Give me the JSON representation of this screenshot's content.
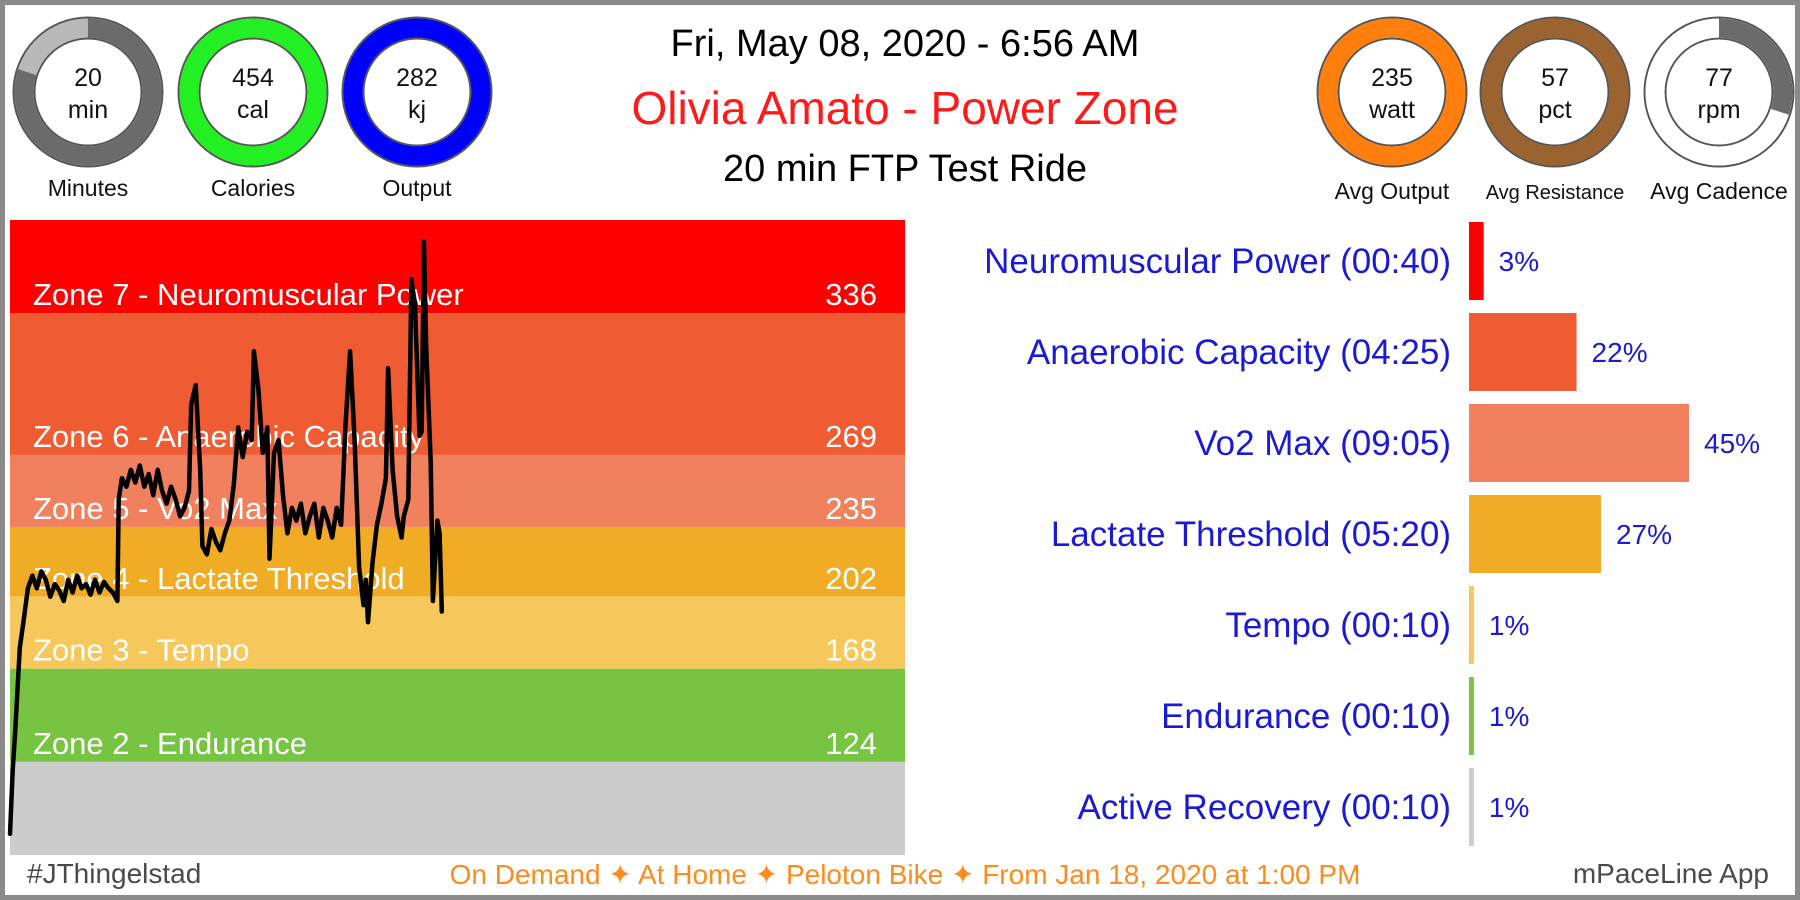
{
  "header": {
    "date": "Fri, May 08, 2020 - 6:56 AM",
    "name": "Olivia Amato - Power Zone",
    "ride": "20 min FTP Test Ride"
  },
  "metrics": [
    {
      "value": "20",
      "unit": "min",
      "label": "Minutes",
      "color": "#6b6b6b",
      "track": "#b8b8b8",
      "fraction": 0.8
    },
    {
      "value": "454",
      "unit": "cal",
      "label": "Calories",
      "color": "#22f022",
      "track": "#22f022",
      "fraction": 1.0
    },
    {
      "value": "282",
      "unit": "kj",
      "label": "Output",
      "color": "#0000ff",
      "track": "#0000ff",
      "fraction": 1.0
    },
    {
      "value": "235",
      "unit": "watt",
      "label": "Avg Output",
      "color": "#ff7f0e",
      "track": "#ff7f0e",
      "fraction": 1.0
    },
    {
      "value": "57",
      "unit": "pct",
      "label": "Avg Resistance",
      "color": "#9a6330",
      "track": "#9a6330",
      "fraction": 1.0
    },
    {
      "value": "77",
      "unit": "rpm",
      "label": "Avg Cadence",
      "color": "#6b6b6b",
      "track": "#ffffff",
      "fraction": 0.3
    }
  ],
  "chart_data": [
    {
      "type": "line",
      "title": "",
      "xlabel": "",
      "ylabel": "",
      "xlim": [
        0,
        20
      ],
      "ylim": [
        80,
        380
      ],
      "grid": false,
      "zones": [
        {
          "label": "Zone 7 - Neuromuscular Power",
          "threshold": 336,
          "color": "#ff0000"
        },
        {
          "label": "Zone 6 - Anaerobic Capacity",
          "threshold": 269,
          "color": "#ef5b32"
        },
        {
          "label": "Zone 5 - Vo2 Max",
          "threshold": 235,
          "color": "#f0805e"
        },
        {
          "label": "Zone 4 - Lactate Threshold",
          "threshold": 202,
          "color": "#f0ac24"
        },
        {
          "label": "Zone 3 - Tempo",
          "threshold": 168,
          "color": "#f6c75a"
        },
        {
          "label": "Zone 2 - Endurance",
          "threshold": 124,
          "color": "#76c442"
        },
        {
          "label": "",
          "threshold": 80,
          "color": "#cccccc"
        }
      ],
      "series": [
        {
          "color": "#000000",
          "points": [
            [
              0.0,
              90
            ],
            [
              0.06,
              120
            ],
            [
              0.12,
              140
            ],
            [
              0.22,
              178
            ],
            [
              0.3,
              190
            ],
            [
              0.4,
              206
            ],
            [
              0.5,
              212
            ],
            [
              0.6,
              206
            ],
            [
              0.7,
              214
            ],
            [
              0.8,
              210
            ],
            [
              0.9,
              202
            ],
            [
              1.0,
              208
            ],
            [
              1.1,
              205
            ],
            [
              1.2,
              200
            ],
            [
              1.3,
              210
            ],
            [
              1.4,
              204
            ],
            [
              1.5,
              212
            ],
            [
              1.6,
              206
            ],
            [
              1.7,
              208
            ],
            [
              1.8,
              203
            ],
            [
              1.9,
              210
            ],
            [
              2.0,
              204
            ],
            [
              2.1,
              209
            ],
            [
              2.2,
              206
            ],
            [
              2.3,
              204
            ],
            [
              2.4,
              200
            ],
            [
              2.43,
              248
            ],
            [
              2.5,
              258
            ],
            [
              2.6,
              254
            ],
            [
              2.7,
              262
            ],
            [
              2.8,
              256
            ],
            [
              2.9,
              264
            ],
            [
              3.0,
              254
            ],
            [
              3.1,
              260
            ],
            [
              3.2,
              250
            ],
            [
              3.3,
              262
            ],
            [
              3.4,
              252
            ],
            [
              3.5,
              246
            ],
            [
              3.6,
              254
            ],
            [
              3.7,
              248
            ],
            [
              3.8,
              240
            ],
            [
              3.9,
              244
            ],
            [
              4.0,
              252
            ],
            [
              4.05,
              293
            ],
            [
              4.15,
              302
            ],
            [
              4.25,
              262
            ],
            [
              4.3,
              226
            ],
            [
              4.4,
              222
            ],
            [
              4.5,
              234
            ],
            [
              4.6,
              228
            ],
            [
              4.7,
              224
            ],
            [
              4.8,
              232
            ],
            [
              4.9,
              238
            ],
            [
              5.0,
              255
            ],
            [
              5.1,
              282
            ],
            [
              5.2,
              268
            ],
            [
              5.3,
              280
            ],
            [
              5.4,
              276
            ],
            [
              5.45,
              318
            ],
            [
              5.55,
              300
            ],
            [
              5.65,
              270
            ],
            [
              5.75,
              282
            ],
            [
              5.8,
              220
            ],
            [
              5.9,
              270
            ],
            [
              6.0,
              276
            ],
            [
              6.1,
              250
            ],
            [
              6.2,
              232
            ],
            [
              6.3,
              244
            ],
            [
              6.4,
              238
            ],
            [
              6.5,
              246
            ],
            [
              6.6,
              232
            ],
            [
              6.7,
              240
            ],
            [
              6.8,
              246
            ],
            [
              6.9,
              230
            ],
            [
              7.0,
              244
            ],
            [
              7.1,
              238
            ],
            [
              7.2,
              230
            ],
            [
              7.3,
              244
            ],
            [
              7.4,
              236
            ],
            [
              7.5,
              284
            ],
            [
              7.6,
              318
            ],
            [
              7.7,
              276
            ],
            [
              7.8,
              216
            ],
            [
              7.9,
              198
            ],
            [
              7.95,
              210
            ],
            [
              8.0,
              190
            ],
            [
              8.1,
              218
            ],
            [
              8.2,
              236
            ],
            [
              8.3,
              246
            ],
            [
              8.4,
              258
            ],
            [
              8.45,
              310
            ],
            [
              8.55,
              262
            ],
            [
              8.65,
              240
            ],
            [
              8.75,
              230
            ],
            [
              8.8,
              240
            ],
            [
              8.9,
              248
            ],
            [
              8.97,
              352
            ],
            [
              9.05,
              340
            ],
            [
              9.15,
              278
            ],
            [
              9.2,
              280
            ],
            [
              9.25,
              370
            ],
            [
              9.3,
              320
            ],
            [
              9.4,
              266
            ],
            [
              9.45,
              200
            ],
            [
              9.55,
              238
            ],
            [
              9.6,
              232
            ],
            [
              9.65,
              195
            ]
          ]
        }
      ]
    },
    {
      "type": "bar",
      "orientation": "horizontal",
      "title": "",
      "categories": [
        "Neuromuscular Power (00:40)",
        "Anaerobic Capacity (04:25)",
        "Vo2 Max (09:05)",
        "Lactate Threshold (05:20)",
        "Tempo (00:10)",
        "Endurance (00:10)",
        "Active Recovery (00:10)"
      ],
      "values": [
        3,
        22,
        45,
        27,
        1,
        1,
        1
      ],
      "value_labels": [
        "3%",
        "22%",
        "45%",
        "27%",
        "1%",
        "1%",
        "1%"
      ],
      "colors": [
        "#ff0000",
        "#ef5b32",
        "#f0805e",
        "#f0ac24",
        "#f6c75a",
        "#76c442",
        "#cccccc"
      ],
      "label_color": "#1a1ad6",
      "xlim": [
        0,
        45
      ]
    }
  ],
  "footer": {
    "left": "#JThingelstad",
    "center": "On Demand ✦ At Home  ✦ Peloton Bike ✦ From Jan 18, 2020 at 1:00 PM",
    "right": "mPaceLine App"
  }
}
